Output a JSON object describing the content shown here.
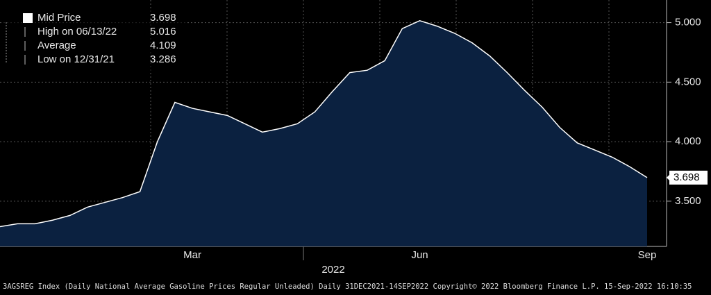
{
  "chart_data": {
    "type": "area",
    "x_label": "2022",
    "footer": "3AGSREG Index (Daily National Average Gasoline Prices Regular Unleaded)  Daily 31DEC2021-14SEP2022  Copyright© 2022 Bloomberg Finance L.P.  15-Sep-2022 16:10:35",
    "categories": [
      null,
      null,
      null,
      null,
      null,
      null,
      null,
      null,
      null,
      null,
      null,
      "Mar",
      null,
      null,
      null,
      null,
      null,
      null,
      null,
      null,
      null,
      null,
      null,
      null,
      "Jun",
      null,
      null,
      null,
      null,
      null,
      null,
      null,
      null,
      null,
      null,
      null,
      null,
      "Sep"
    ],
    "series": [
      {
        "name": "Mid Price",
        "color": "#ffffff",
        "fill": "#0b2140",
        "values": [
          3.286,
          3.31,
          3.31,
          3.34,
          3.38,
          3.45,
          3.49,
          3.53,
          3.58,
          4.0,
          4.33,
          4.28,
          4.25,
          4.22,
          4.15,
          4.08,
          4.11,
          4.15,
          4.25,
          4.42,
          4.58,
          4.6,
          4.68,
          4.95,
          5.016,
          4.97,
          4.91,
          4.83,
          4.72,
          4.58,
          4.43,
          4.29,
          4.12,
          3.99,
          3.93,
          3.87,
          3.79,
          3.698
        ]
      }
    ],
    "legend": [
      {
        "label": "Mid Price",
        "value": 3.698
      },
      {
        "label": "High on 06/13/22",
        "value": 5.016
      },
      {
        "label": "Average",
        "value": 4.109
      },
      {
        "label": "Low on 12/31/21",
        "value": 3.286
      }
    ],
    "ylim": [
      3.12,
      5.19
    ],
    "yticks": [
      {
        "value": 3.5,
        "label": "3.500"
      },
      {
        "value": 4.0,
        "label": "4.000"
      },
      {
        "value": 4.5,
        "label": "4.500"
      },
      {
        "value": 5.0,
        "label": "5.000"
      }
    ],
    "grid": true
  }
}
